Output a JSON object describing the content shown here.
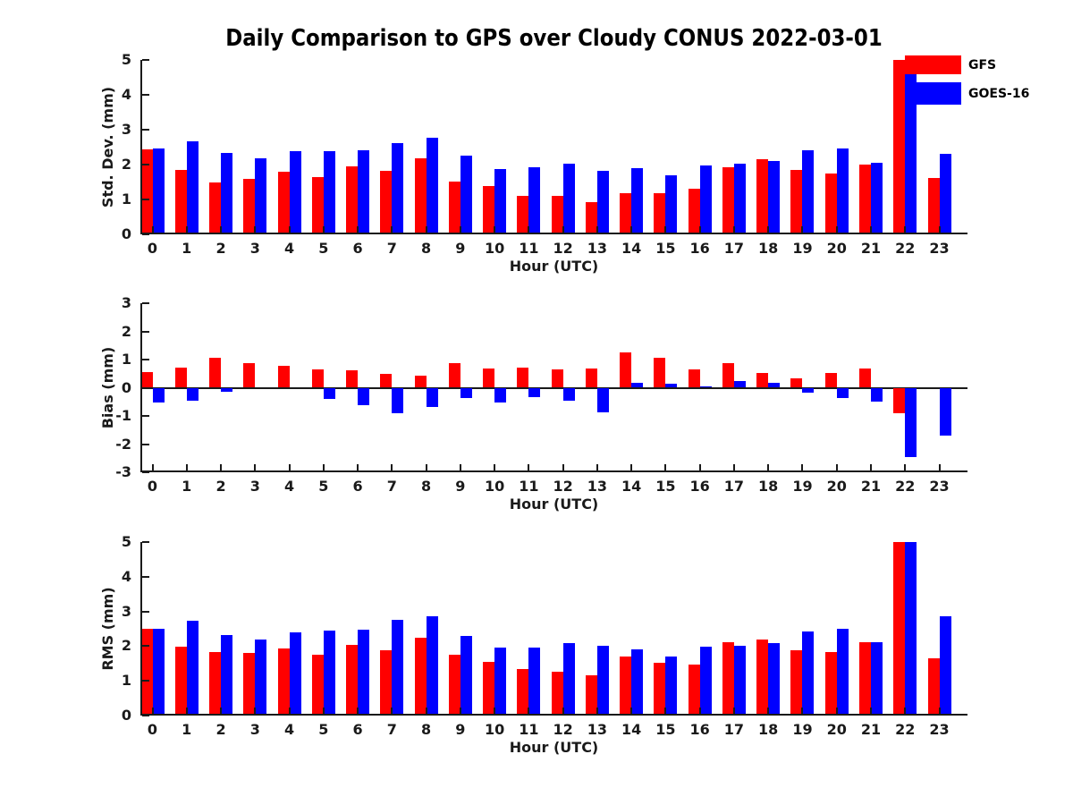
{
  "title": "Daily Comparison to GPS over Cloudy CONUS 2022-03-01",
  "legend": {
    "items": [
      {
        "label": "GFS",
        "color": "#ff0000"
      },
      {
        "label": "GOES-16",
        "color": "#0000ff"
      }
    ]
  },
  "colors": {
    "gfs": "#ff0000",
    "goes16": "#0000ff",
    "axis": "#1a1a1a",
    "background": "#ffffff"
  },
  "chart_data": [
    {
      "type": "bar",
      "title": "",
      "ylabel": "Std. Dev. (mm)",
      "xlabel": "Hour (UTC)",
      "ylim": [
        0,
        5
      ],
      "yticks": [
        0,
        1,
        2,
        3,
        4,
        5
      ],
      "grid": false,
      "legend_position": "upper right",
      "categories": [
        "0",
        "1",
        "2",
        "3",
        "4",
        "5",
        "6",
        "7",
        "8",
        "9",
        "10",
        "11",
        "12",
        "13",
        "14",
        "15",
        "16",
        "17",
        "18",
        "19",
        "20",
        "21",
        "22",
        "23"
      ],
      "series": [
        {
          "name": "GFS",
          "color": "#ff0000",
          "values": [
            2.44,
            1.85,
            1.49,
            1.59,
            1.79,
            1.65,
            1.95,
            1.83,
            2.19,
            1.52,
            1.38,
            1.1,
            1.1,
            0.92,
            1.17,
            1.17,
            1.3,
            1.92,
            2.15,
            1.84,
            1.75,
            2.0,
            5.0,
            1.62
          ]
        },
        {
          "name": "GOES-16",
          "color": "#0000ff",
          "values": [
            2.45,
            2.67,
            2.33,
            2.18,
            2.39,
            2.39,
            2.42,
            2.62,
            2.77,
            2.26,
            1.87,
            1.93,
            2.03,
            1.82,
            1.9,
            1.7,
            1.98,
            2.02,
            2.1,
            2.41,
            2.46,
            2.04,
            4.95,
            2.32
          ]
        }
      ]
    },
    {
      "type": "bar",
      "title": "",
      "ylabel": "Bias (mm)",
      "xlabel": "Hour (UTC)",
      "ylim": [
        -3,
        3
      ],
      "yticks": [
        -3,
        -2,
        -1,
        0,
        1,
        2,
        3
      ],
      "grid": false,
      "categories": [
        "0",
        "1",
        "2",
        "3",
        "4",
        "5",
        "6",
        "7",
        "8",
        "9",
        "10",
        "11",
        "12",
        "13",
        "14",
        "15",
        "16",
        "17",
        "18",
        "19",
        "20",
        "21",
        "22",
        "23"
      ],
      "series": [
        {
          "name": "GFS",
          "color": "#ff0000",
          "values": [
            0.55,
            0.73,
            1.07,
            0.88,
            0.77,
            0.64,
            0.61,
            0.49,
            0.43,
            0.88,
            0.67,
            0.73,
            0.66,
            0.69,
            1.24,
            1.05,
            0.66,
            0.86,
            0.52,
            0.33,
            0.52,
            0.68,
            -0.92,
            0.0
          ]
        },
        {
          "name": "GOES-16",
          "color": "#0000ff",
          "values": [
            -0.52,
            -0.46,
            -0.13,
            0.0,
            0.0,
            -0.39,
            -0.61,
            -0.91,
            -0.68,
            -0.35,
            -0.52,
            -0.34,
            -0.46,
            -0.87,
            0.16,
            0.13,
            0.04,
            0.24,
            0.17,
            -0.16,
            -0.38,
            -0.5,
            -2.45,
            -1.69
          ]
        }
      ]
    },
    {
      "type": "bar",
      "title": "",
      "ylabel": "RMS (mm)",
      "xlabel": "Hour (UTC)",
      "ylim": [
        0,
        5
      ],
      "yticks": [
        0,
        1,
        2,
        3,
        4,
        5
      ],
      "grid": false,
      "categories": [
        "0",
        "1",
        "2",
        "3",
        "4",
        "5",
        "6",
        "7",
        "8",
        "9",
        "10",
        "11",
        "12",
        "13",
        "14",
        "15",
        "16",
        "17",
        "18",
        "19",
        "20",
        "21",
        "22",
        "23"
      ],
      "series": [
        {
          "name": "GFS",
          "color": "#ff0000",
          "values": [
            2.49,
            1.99,
            1.83,
            1.8,
            1.93,
            1.74,
            2.03,
            1.88,
            2.23,
            1.74,
            1.55,
            1.34,
            1.27,
            1.16,
            1.69,
            1.53,
            1.46,
            2.12,
            2.2,
            1.88,
            1.83,
            2.12,
            5.0,
            1.65
          ]
        },
        {
          "name": "GOES-16",
          "color": "#0000ff",
          "values": [
            2.49,
            2.72,
            2.33,
            2.2,
            2.4,
            2.44,
            2.47,
            2.76,
            2.85,
            2.29,
            1.97,
            1.97,
            2.08,
            2.0,
            1.9,
            1.7,
            1.98,
            2.01,
            2.1,
            2.41,
            2.49,
            2.11,
            5.0,
            2.85
          ]
        }
      ]
    }
  ]
}
